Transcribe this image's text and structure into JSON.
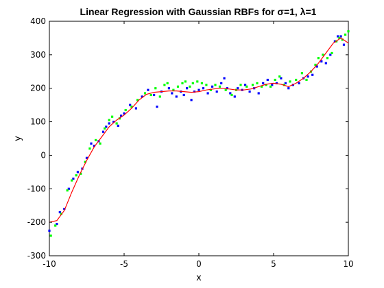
{
  "chart_data": {
    "type": "scatter",
    "title": "Linear Regression with Gaussian RBFs for σ=1, λ=1",
    "xlabel": "x",
    "ylabel": "y",
    "xlim": [
      -10,
      10
    ],
    "ylim": [
      -300,
      400
    ],
    "x_ticks": [
      -10,
      -5,
      0,
      5,
      10
    ],
    "x_tick_labels": [
      "-10",
      "-5",
      "0",
      "5",
      "10"
    ],
    "y_ticks": [
      -300,
      -200,
      -100,
      0,
      100,
      200,
      300,
      400
    ],
    "y_tick_labels": [
      "-300",
      "-200",
      "-100",
      "0",
      "100",
      "200",
      "300",
      "400"
    ],
    "grid": false,
    "legend": "none",
    "series": [
      {
        "color": "#0000ff",
        "marker": "square",
        "points": [
          [
            -10,
            -225
          ],
          [
            -9.5,
            -205
          ],
          [
            -9.3,
            -170
          ],
          [
            -9.0,
            -160
          ],
          [
            -8.7,
            -100
          ],
          [
            -8.4,
            -70
          ],
          [
            -8.1,
            -50
          ],
          [
            -7.8,
            -40
          ],
          [
            -7.5,
            -8
          ],
          [
            -7.2,
            35
          ],
          [
            -7.0,
            28
          ],
          [
            -6.7,
            42
          ],
          [
            -6.4,
            70
          ],
          [
            -6.2,
            85
          ],
          [
            -6.0,
            95
          ],
          [
            -5.7,
            100
          ],
          [
            -5.4,
            88
          ],
          [
            -5.2,
            118
          ],
          [
            -5.0,
            125
          ],
          [
            -4.6,
            150
          ],
          [
            -4.2,
            140
          ],
          [
            -3.8,
            175
          ],
          [
            -3.4,
            195
          ],
          [
            -3.0,
            180
          ],
          [
            -2.8,
            145
          ],
          [
            -2.5,
            190
          ],
          [
            -2.0,
            200
          ],
          [
            -1.8,
            185
          ],
          [
            -1.5,
            175
          ],
          [
            -1.2,
            190
          ],
          [
            -1.0,
            180
          ],
          [
            -0.8,
            200
          ],
          [
            -0.5,
            165
          ],
          [
            -0.3,
            190
          ],
          [
            0.0,
            195
          ],
          [
            0.3,
            200
          ],
          [
            0.6,
            185
          ],
          [
            0.9,
            205
          ],
          [
            1.2,
            190
          ],
          [
            1.5,
            215
          ],
          [
            1.7,
            230
          ],
          [
            1.9,
            200
          ],
          [
            2.1,
            185
          ],
          [
            2.4,
            175
          ],
          [
            2.6,
            200
          ],
          [
            2.9,
            195
          ],
          [
            3.1,
            210
          ],
          [
            3.4,
            190
          ],
          [
            3.7,
            200
          ],
          [
            4.0,
            185
          ],
          [
            4.3,
            215
          ],
          [
            4.6,
            225
          ],
          [
            4.9,
            210
          ],
          [
            5.2,
            215
          ],
          [
            5.5,
            230
          ],
          [
            5.8,
            215
          ],
          [
            6.0,
            200
          ],
          [
            6.3,
            210
          ],
          [
            6.7,
            215
          ],
          [
            7.0,
            230
          ],
          [
            7.3,
            235
          ],
          [
            7.6,
            240
          ],
          [
            7.9,
            265
          ],
          [
            8.2,
            280
          ],
          [
            8.5,
            275
          ],
          [
            8.8,
            300
          ],
          [
            9.1,
            340
          ],
          [
            9.3,
            355
          ],
          [
            9.5,
            355
          ],
          [
            9.7,
            330
          ]
        ]
      },
      {
        "color": "#00ff00",
        "marker": "square",
        "points": [
          [
            -9.9,
            -240
          ],
          [
            -9.6,
            -210
          ],
          [
            -9.2,
            -175
          ],
          [
            -8.8,
            -105
          ],
          [
            -8.5,
            -75
          ],
          [
            -8.2,
            -60
          ],
          [
            -7.9,
            -55
          ],
          [
            -7.6,
            -20
          ],
          [
            -7.3,
            20
          ],
          [
            -6.9,
            45
          ],
          [
            -6.6,
            35
          ],
          [
            -6.3,
            80
          ],
          [
            -6.0,
            105
          ],
          [
            -5.8,
            115
          ],
          [
            -5.5,
            95
          ],
          [
            -5.3,
            110
          ],
          [
            -4.9,
            135
          ],
          [
            -4.5,
            145
          ],
          [
            -4.1,
            165
          ],
          [
            -3.6,
            185
          ],
          [
            -3.2,
            180
          ],
          [
            -2.9,
            200
          ],
          [
            -2.6,
            175
          ],
          [
            -2.3,
            210
          ],
          [
            -2.1,
            215
          ],
          [
            -1.7,
            195
          ],
          [
            -1.4,
            205
          ],
          [
            -1.1,
            215
          ],
          [
            -0.9,
            220
          ],
          [
            -0.6,
            205
          ],
          [
            -0.4,
            215
          ],
          [
            -0.1,
            220
          ],
          [
            0.2,
            215
          ],
          [
            0.5,
            210
          ],
          [
            0.8,
            195
          ],
          [
            1.1,
            210
          ],
          [
            1.4,
            205
          ],
          [
            1.8,
            195
          ],
          [
            2.2,
            180
          ],
          [
            2.5,
            195
          ],
          [
            2.8,
            210
          ],
          [
            3.2,
            205
          ],
          [
            3.6,
            210
          ],
          [
            3.9,
            215
          ],
          [
            4.2,
            205
          ],
          [
            4.5,
            210
          ],
          [
            4.8,
            205
          ],
          [
            5.1,
            225
          ],
          [
            5.4,
            235
          ],
          [
            5.7,
            210
          ],
          [
            6.1,
            220
          ],
          [
            6.5,
            225
          ],
          [
            6.9,
            245
          ],
          [
            7.2,
            225
          ],
          [
            7.5,
            250
          ],
          [
            7.8,
            270
          ],
          [
            8.0,
            290
          ],
          [
            8.3,
            300
          ],
          [
            8.6,
            290
          ],
          [
            8.9,
            305
          ],
          [
            9.2,
            340
          ],
          [
            9.4,
            350
          ],
          [
            9.6,
            345
          ],
          [
            9.8,
            360
          ],
          [
            10.0,
            370
          ]
        ]
      },
      {
        "color": "#ff0000",
        "marker": "line",
        "points": [
          [
            -10,
            -200
          ],
          [
            -9.5,
            -195
          ],
          [
            -9.0,
            -165
          ],
          [
            -8.5,
            -110
          ],
          [
            -8.0,
            -60
          ],
          [
            -7.5,
            -15
          ],
          [
            -7.0,
            25
          ],
          [
            -6.5,
            55
          ],
          [
            -6.0,
            85
          ],
          [
            -5.5,
            105
          ],
          [
            -5.0,
            120
          ],
          [
            -4.5,
            140
          ],
          [
            -4.0,
            165
          ],
          [
            -3.5,
            182
          ],
          [
            -3.0,
            188
          ],
          [
            -2.5,
            190
          ],
          [
            -2.0,
            192
          ],
          [
            -1.5,
            192
          ],
          [
            -1.0,
            190
          ],
          [
            -0.5,
            188
          ],
          [
            0.0,
            190
          ],
          [
            0.5,
            195
          ],
          [
            1.0,
            198
          ],
          [
            1.5,
            200
          ],
          [
            2.0,
            198
          ],
          [
            2.5,
            195
          ],
          [
            3.0,
            195
          ],
          [
            3.5,
            198
          ],
          [
            4.0,
            205
          ],
          [
            4.5,
            212
          ],
          [
            5.0,
            215
          ],
          [
            5.5,
            212
          ],
          [
            6.0,
            205
          ],
          [
            6.5,
            215
          ],
          [
            7.0,
            230
          ],
          [
            7.5,
            250
          ],
          [
            8.0,
            275
          ],
          [
            8.5,
            305
          ],
          [
            9.0,
            335
          ],
          [
            9.5,
            350
          ],
          [
            10.0,
            335
          ]
        ]
      }
    ]
  }
}
